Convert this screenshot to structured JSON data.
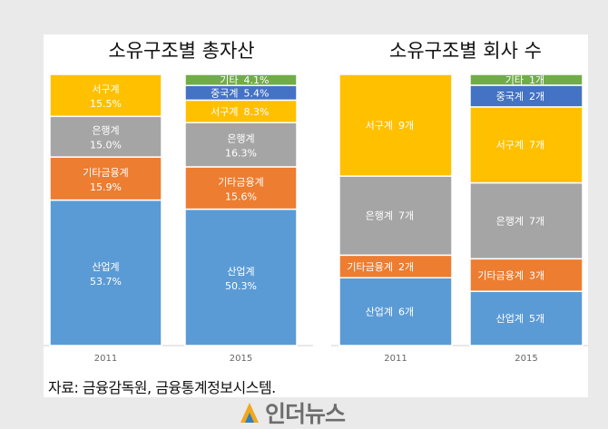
{
  "colors": {
    "산업계": "#5b9bd5",
    "기타금융계": "#ed7d31",
    "은행계": "#a5a5a5",
    "서구계": "#ffc000",
    "중국계": "#4472c4",
    "기타": "#70ad47"
  },
  "chart_data": [
    {
      "type": "bar",
      "stacked": true,
      "title": "소유구조별 총자산",
      "categories": [
        "2011",
        "2015"
      ],
      "series": [
        {
          "name": "산업계",
          "values": [
            53.7,
            50.3
          ],
          "labels": [
            "53.7%",
            "50.3%"
          ]
        },
        {
          "name": "기타금융계",
          "values": [
            15.9,
            15.6
          ],
          "labels": [
            "15.9%",
            "15.6%"
          ]
        },
        {
          "name": "은행계",
          "values": [
            15.0,
            16.3
          ],
          "labels": [
            "15.0%",
            "16.3%"
          ]
        },
        {
          "name": "서구계",
          "values": [
            15.5,
            8.3
          ],
          "labels": [
            "15.5%",
            "8.3%"
          ]
        },
        {
          "name": "중국계",
          "values": [
            0,
            5.4
          ],
          "labels": [
            "",
            "5.4%"
          ]
        },
        {
          "name": "기타",
          "values": [
            0,
            4.1
          ],
          "labels": [
            "",
            "4.1%"
          ]
        }
      ],
      "ylim": [
        0,
        100
      ]
    },
    {
      "type": "bar",
      "stacked": true,
      "title": "소유구조별 회사 수",
      "categories": [
        "2011",
        "2015"
      ],
      "series": [
        {
          "name": "산업계",
          "values": [
            6,
            5
          ],
          "labels": [
            "6개",
            "5개"
          ]
        },
        {
          "name": "기타금융계",
          "values": [
            2,
            3
          ],
          "labels": [
            "2개",
            "3개"
          ]
        },
        {
          "name": "은행계",
          "values": [
            7,
            7
          ],
          "labels": [
            "7개",
            "7개"
          ]
        },
        {
          "name": "서구계",
          "values": [
            9,
            7
          ],
          "labels": [
            "9개",
            "7개"
          ]
        },
        {
          "name": "중국계",
          "values": [
            0,
            2
          ],
          "labels": [
            "",
            "2개"
          ]
        },
        {
          "name": "기타",
          "values": [
            0,
            1
          ],
          "labels": [
            "",
            "1개"
          ]
        }
      ],
      "ylim": [
        0,
        24
      ]
    }
  ],
  "source_text": "자료: 금융감독원, 금융통계정보시스템.",
  "logo_text": "인더뉴스"
}
